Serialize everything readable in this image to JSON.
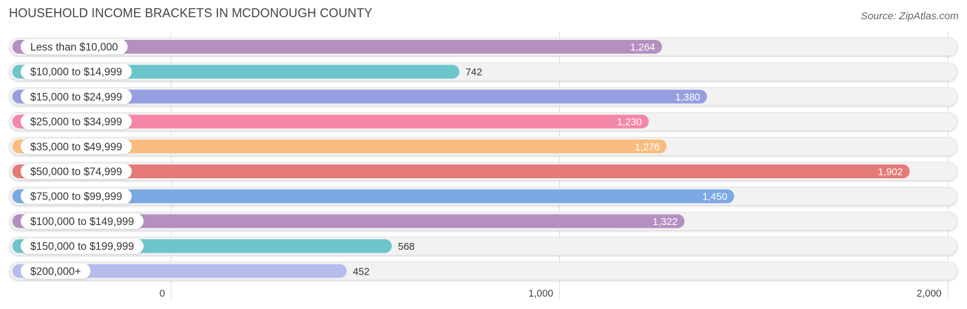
{
  "title": "HOUSEHOLD INCOME BRACKETS IN MCDONOUGH COUNTY",
  "source": "Source: ZipAtlas.com",
  "chart_data": {
    "type": "bar",
    "orientation": "horizontal",
    "title": "HOUSEHOLD INCOME BRACKETS IN MCDONOUGH COUNTY",
    "categories": [
      "Less than $10,000",
      "$10,000 to $14,999",
      "$15,000 to $24,999",
      "$25,000 to $34,999",
      "$35,000 to $49,999",
      "$50,000 to $74,999",
      "$75,000 to $99,999",
      "$100,000 to $149,999",
      "$150,000 to $199,999",
      "$200,000+"
    ],
    "values": [
      1264,
      742,
      1380,
      1230,
      1276,
      1902,
      1450,
      1322,
      568,
      452
    ],
    "value_labels": [
      "1,264",
      "742",
      "1,380",
      "1,230",
      "1,276",
      "1,902",
      "1,450",
      "1,322",
      "568",
      "452"
    ],
    "colors": [
      "#b48fc0",
      "#6cc5cb",
      "#959fe0",
      "#f487a8",
      "#f8bd7e",
      "#e57a77",
      "#7aa9e3",
      "#b48fc0",
      "#6cc5cb",
      "#b6bdec"
    ],
    "xlim": [
      0,
      2000
    ],
    "xticks": [
      0,
      1000,
      2000
    ],
    "xtick_labels": [
      "0",
      "1,000",
      "2,000"
    ],
    "grid": true,
    "legend": "none"
  }
}
